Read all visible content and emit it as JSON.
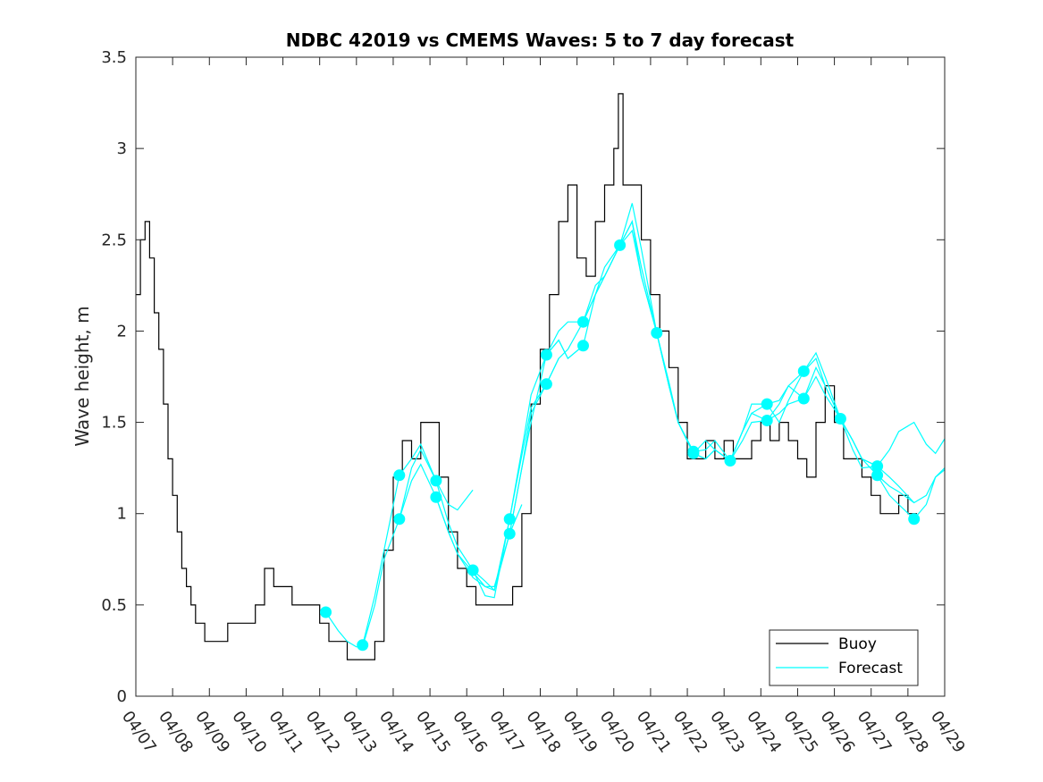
{
  "chart_data": {
    "type": "line",
    "title": "NDBC 42019 vs CMEMS Waves: 5 to 7 day forecast",
    "xlabel": "",
    "ylabel": "Wave height, m",
    "xlim": [
      "04/07",
      "04/29"
    ],
    "ylim": [
      0,
      3.5
    ],
    "yticks": [
      0,
      0.5,
      1,
      1.5,
      2,
      2.5,
      3,
      3.5
    ],
    "ytick_labels": [
      "0",
      "0.5",
      "1",
      "1.5",
      "2",
      "2.5",
      "3",
      "3.5"
    ],
    "xtick_labels": [
      "04/07",
      "04/08",
      "04/09",
      "04/10",
      "04/11",
      "04/12",
      "04/13",
      "04/14",
      "04/15",
      "04/16",
      "04/17",
      "04/18",
      "04/19",
      "04/20",
      "04/21",
      "04/22",
      "04/23",
      "04/24",
      "04/25",
      "04/26",
      "04/27",
      "04/28",
      "04/29"
    ],
    "grid": false,
    "legend": {
      "position": "bottom-right",
      "entries": [
        "Buoy",
        "Forecast"
      ]
    },
    "colors": {
      "buoy": "#000000",
      "forecast": "#00FFFF"
    },
    "buoy": {
      "name": "Buoy",
      "x": [
        "04/07 00:00",
        "04/07 03:00",
        "04/07 06:00",
        "04/07 09:00",
        "04/07 12:00",
        "04/07 15:00",
        "04/07 18:00",
        "04/07 21:00",
        "04/08 00:00",
        "04/08 03:00",
        "04/08 06:00",
        "04/08 09:00",
        "04/08 12:00",
        "04/08 15:00",
        "04/08 18:00",
        "04/08 21:00",
        "04/09 00:00",
        "04/09 06:00",
        "04/09 12:00",
        "04/09 18:00",
        "04/10 00:00",
        "04/10 06:00",
        "04/10 12:00",
        "04/10 18:00",
        "04/11 00:00",
        "04/11 06:00",
        "04/11 12:00",
        "04/11 18:00",
        "04/12 00:00",
        "04/12 06:00",
        "04/12 12:00",
        "04/12 18:00",
        "04/13 00:00",
        "04/13 06:00",
        "04/13 12:00",
        "04/13 18:00",
        "04/14 00:00",
        "04/14 06:00",
        "04/14 12:00",
        "04/14 18:00",
        "04/15 00:00",
        "04/15 06:00",
        "04/15 12:00",
        "04/15 18:00",
        "04/16 00:00",
        "04/16 06:00",
        "04/16 12:00",
        "04/16 18:00",
        "04/17 00:00",
        "04/17 06:00",
        "04/17 12:00",
        "04/17 18:00",
        "04/18 00:00",
        "04/18 06:00",
        "04/18 12:00",
        "04/18 18:00",
        "04/19 00:00",
        "04/19 06:00",
        "04/19 12:00",
        "04/19 18:00",
        "04/20 00:00",
        "04/20 03:00",
        "04/20 06:00",
        "04/20 12:00",
        "04/20 18:00",
        "04/21 00:00",
        "04/21 06:00",
        "04/21 12:00",
        "04/21 18:00",
        "04/22 00:00",
        "04/22 06:00",
        "04/22 12:00",
        "04/22 18:00",
        "04/23 00:00",
        "04/23 06:00",
        "04/23 12:00",
        "04/23 18:00",
        "04/24 00:00",
        "04/24 06:00",
        "04/24 12:00",
        "04/24 18:00",
        "04/25 00:00",
        "04/25 06:00",
        "04/25 12:00",
        "04/25 18:00",
        "04/26 00:00",
        "04/26 06:00",
        "04/26 12:00",
        "04/26 18:00",
        "04/27 00:00",
        "04/27 06:00",
        "04/27 12:00",
        "04/27 18:00",
        "04/28 00:00",
        "04/28 06:00"
      ],
      "y": [
        2.2,
        2.5,
        2.6,
        2.4,
        2.1,
        1.9,
        1.6,
        1.3,
        1.1,
        0.9,
        0.7,
        0.6,
        0.5,
        0.4,
        0.4,
        0.3,
        0.3,
        0.3,
        0.4,
        0.4,
        0.4,
        0.5,
        0.7,
        0.6,
        0.6,
        0.5,
        0.5,
        0.5,
        0.4,
        0.3,
        0.3,
        0.2,
        0.2,
        0.2,
        0.3,
        0.8,
        1.2,
        1.4,
        1.3,
        1.5,
        1.5,
        1.2,
        0.9,
        0.7,
        0.6,
        0.5,
        0.5,
        0.5,
        0.5,
        0.6,
        1.0,
        1.6,
        1.9,
        2.2,
        2.6,
        2.8,
        2.4,
        2.3,
        2.6,
        2.8,
        3.0,
        3.3,
        2.8,
        2.8,
        2.5,
        2.2,
        2.0,
        1.8,
        1.5,
        1.3,
        1.3,
        1.4,
        1.3,
        1.4,
        1.3,
        1.3,
        1.4,
        1.5,
        1.4,
        1.5,
        1.4,
        1.3,
        1.2,
        1.5,
        1.7,
        1.5,
        1.3,
        1.3,
        1.2,
        1.1,
        1.0,
        1.0,
        1.1,
        1.0,
        1.0
      ]
    },
    "forecast_series": [
      {
        "x": [
          "04/12 04:00",
          "04/12 12:00",
          "04/12 18:00",
          "04/13 00:00",
          "04/13 04:00",
          "04/13 12:00",
          "04/13 18:00",
          "04/14 04:00",
          "04/14 12:00",
          "04/14 18:00",
          "04/15 04:00",
          "04/15 12:00",
          "04/15 18:00",
          "04/16 04:00",
          "04/16 12:00",
          "04/16 18:00",
          "04/17 04:00",
          "04/17 12:00"
        ],
        "y": [
          0.46,
          0.36,
          0.3,
          0.27,
          0.27,
          0.5,
          0.75,
          0.97,
          1.18,
          1.27,
          1.09,
          0.9,
          0.78,
          0.68,
          0.6,
          0.6,
          0.89,
          1.05
        ]
      },
      {
        "x": [
          "04/13 04:00",
          "04/13 12:00",
          "04/13 18:00",
          "04/14 04:00",
          "04/14 12:00",
          "04/14 18:00",
          "04/15 04:00",
          "04/15 12:00",
          "04/15 18:00",
          "04/16 04:00"
        ],
        "y": [
          0.28,
          0.55,
          0.8,
          1.21,
          1.3,
          1.38,
          1.18,
          1.05,
          1.02,
          1.13
        ]
      },
      {
        "x": [
          "04/14 04:00",
          "04/14 12:00",
          "04/14 18:00",
          "04/15 04:00",
          "04/15 12:00",
          "04/15 18:00",
          "04/16 04:00",
          "04/16 12:00",
          "04/16 18:00",
          "04/17 04:00",
          "04/17 12:00",
          "04/17 18:00",
          "04/18 04:00",
          "04/18 12:00"
        ],
        "y": [
          0.97,
          1.25,
          1.35,
          1.18,
          0.95,
          0.82,
          0.69,
          0.55,
          0.54,
          0.97,
          1.32,
          1.58,
          1.71,
          1.85
        ]
      },
      {
        "x": [
          "04/15 04:00",
          "04/15 12:00",
          "04/15 18:00",
          "04/16 04:00",
          "04/16 12:00",
          "04/16 18:00",
          "04/17 04:00",
          "04/17 12:00",
          "04/17 18:00",
          "04/18 04:00",
          "04/18 12:00",
          "04/18 18:00",
          "04/19 04:00"
        ],
        "y": [
          1.09,
          0.9,
          0.78,
          0.65,
          0.6,
          0.58,
          0.89,
          1.25,
          1.5,
          1.87,
          1.95,
          1.85,
          1.92
        ]
      },
      {
        "x": [
          "04/16 04:00",
          "04/16 12:00",
          "04/16 18:00",
          "04/17 04:00",
          "04/17 12:00",
          "04/17 18:00",
          "04/18 04:00",
          "04/18 12:00",
          "04/18 18:00",
          "04/19 04:00",
          "04/19 12:00",
          "04/19 18:00",
          "04/20 04:00"
        ],
        "y": [
          0.69,
          0.63,
          0.58,
          0.97,
          1.35,
          1.65,
          1.87,
          2.0,
          2.05,
          2.05,
          2.2,
          2.3,
          2.47
        ]
      },
      {
        "x": [
          "04/17 04:00",
          "04/17 12:00",
          "04/17 18:00",
          "04/18 04:00",
          "04/18 12:00",
          "04/18 18:00",
          "04/19 04:00",
          "04/19 12:00",
          "04/19 18:00",
          "04/20 04:00",
          "04/20 12:00",
          "04/20 18:00",
          "04/21 04:00"
        ],
        "y": [
          0.89,
          1.25,
          1.55,
          1.71,
          1.85,
          1.9,
          2.05,
          2.25,
          2.3,
          2.47,
          2.55,
          2.3,
          1.99
        ]
      },
      {
        "x": [
          "04/18 04:00",
          "04/18 12:00",
          "04/18 18:00",
          "04/19 04:00",
          "04/19 12:00",
          "04/19 18:00",
          "04/20 04:00",
          "04/20 12:00",
          "04/20 18:00",
          "04/21 04:00",
          "04/21 12:00",
          "04/21 18:00",
          "04/22 04:00"
        ],
        "y": [
          1.87,
          1.95,
          1.85,
          1.92,
          2.2,
          2.35,
          2.47,
          2.7,
          2.45,
          1.99,
          1.7,
          1.5,
          1.33
        ]
      },
      {
        "x": [
          "04/19 04:00",
          "04/19 12:00",
          "04/19 18:00",
          "04/20 04:00",
          "04/20 12:00",
          "04/20 18:00",
          "04/21 04:00",
          "04/21 12:00",
          "04/21 18:00",
          "04/22 04:00",
          "04/22 12:00",
          "04/22 18:00",
          "04/23 04:00"
        ],
        "y": [
          2.05,
          2.2,
          2.3,
          2.47,
          2.6,
          2.35,
          1.99,
          1.72,
          1.5,
          1.33,
          1.3,
          1.35,
          1.29
        ]
      },
      {
        "x": [
          "04/20 04:00",
          "04/20 12:00",
          "04/20 18:00",
          "04/21 04:00",
          "04/21 12:00",
          "04/21 18:00",
          "04/22 04:00",
          "04/22 12:00",
          "04/22 18:00",
          "04/23 04:00",
          "04/23 12:00",
          "04/23 18:00",
          "04/24 04:00"
        ],
        "y": [
          2.47,
          2.6,
          2.3,
          1.99,
          1.7,
          1.5,
          1.34,
          1.35,
          1.4,
          1.29,
          1.45,
          1.55,
          1.6
        ]
      },
      {
        "x": [
          "04/21 04:00",
          "04/21 12:00",
          "04/21 18:00",
          "04/22 04:00",
          "04/22 12:00",
          "04/22 18:00",
          "04/23 04:00",
          "04/23 12:00",
          "04/23 18:00",
          "04/24 04:00",
          "04/24 12:00",
          "04/24 18:00",
          "04/25 04:00"
        ],
        "y": [
          1.99,
          1.7,
          1.5,
          1.33,
          1.4,
          1.35,
          1.29,
          1.4,
          1.5,
          1.51,
          1.55,
          1.6,
          1.63
        ]
      },
      {
        "x": [
          "04/22 04:00",
          "04/22 12:00",
          "04/22 18:00",
          "04/23 04:00",
          "04/23 12:00",
          "04/23 18:00",
          "04/24 04:00",
          "04/24 12:00",
          "04/24 18:00",
          "04/25 04:00",
          "04/25 12:00",
          "04/25 18:00",
          "04/26 04:00"
        ],
        "y": [
          1.33,
          1.3,
          1.35,
          1.29,
          1.45,
          1.6,
          1.6,
          1.5,
          1.62,
          1.78,
          1.88,
          1.75,
          1.52
        ]
      },
      {
        "x": [
          "04/23 04:00",
          "04/23 12:00",
          "04/23 18:00",
          "04/24 04:00",
          "04/24 12:00",
          "04/24 18:00",
          "04/25 04:00",
          "04/25 12:00",
          "04/25 18:00",
          "04/26 04:00",
          "04/26 12:00",
          "04/26 18:00",
          "04/27 04:00"
        ],
        "y": [
          1.29,
          1.45,
          1.55,
          1.51,
          1.6,
          1.7,
          1.63,
          1.8,
          1.7,
          1.52,
          1.4,
          1.3,
          1.26
        ]
      },
      {
        "x": [
          "04/24 04:00",
          "04/24 12:00",
          "04/24 18:00",
          "04/25 04:00",
          "04/25 12:00",
          "04/25 18:00",
          "04/26 04:00",
          "04/26 12:00",
          "04/26 18:00",
          "04/27 04:00",
          "04/27 12:00",
          "04/27 18:00",
          "04/28 04:00"
        ],
        "y": [
          1.6,
          1.62,
          1.7,
          1.78,
          1.85,
          1.7,
          1.52,
          1.4,
          1.3,
          1.21,
          1.15,
          1.12,
          1.06
        ]
      },
      {
        "x": [
          "04/25 04:00",
          "04/25 12:00",
          "04/25 18:00",
          "04/26 04:00",
          "04/26 12:00",
          "04/26 18:00",
          "04/27 04:00",
          "04/27 12:00",
          "04/27 18:00",
          "04/28 04:00",
          "04/28 12:00",
          "04/28 18:00",
          "04/29 00:00"
        ],
        "y": [
          1.63,
          1.75,
          1.65,
          1.52,
          1.4,
          1.3,
          1.26,
          1.35,
          1.45,
          1.5,
          1.38,
          1.33,
          1.41
        ]
      },
      {
        "x": [
          "04/26 04:00",
          "04/26 12:00",
          "04/26 18:00",
          "04/27 04:00",
          "04/27 12:00",
          "04/27 18:00",
          "04/28 04:00",
          "04/28 12:00",
          "04/28 18:00",
          "04/29 00:00"
        ],
        "y": [
          1.52,
          1.35,
          1.25,
          1.26,
          1.2,
          1.15,
          1.06,
          1.1,
          1.2,
          1.25
        ]
      },
      {
        "x": [
          "04/27 04:00",
          "04/27 12:00",
          "04/27 18:00",
          "04/28 04:00",
          "04/28 12:00",
          "04/28 18:00",
          "04/29 00:00"
        ],
        "y": [
          1.21,
          1.1,
          1.05,
          0.97,
          1.05,
          1.2,
          1.24
        ]
      }
    ],
    "forecast_markers": {
      "x": [
        "04/12 04:00",
        "04/13 04:00",
        "04/14 04:00",
        "04/14 04:00",
        "04/15 04:00",
        "04/15 04:00",
        "04/16 04:00",
        "04/17 04:00",
        "04/17 04:00",
        "04/18 04:00",
        "04/18 04:00",
        "04/19 04:00",
        "04/19 04:00",
        "04/20 04:00",
        "04/21 04:00",
        "04/22 04:00",
        "04/22 04:00",
        "04/23 04:00",
        "04/24 04:00",
        "04/24 04:00",
        "04/25 04:00",
        "04/25 04:00",
        "04/26 04:00",
        "04/27 04:00",
        "04/27 04:00",
        "04/28 04:00"
      ],
      "y": [
        0.46,
        0.28,
        0.97,
        1.21,
        1.18,
        1.09,
        0.69,
        0.97,
        0.89,
        1.87,
        1.71,
        2.05,
        1.92,
        2.47,
        1.99,
        1.34,
        1.33,
        1.29,
        1.6,
        1.51,
        1.78,
        1.63,
        1.52,
        1.26,
        1.21,
        0.97
      ]
    }
  }
}
